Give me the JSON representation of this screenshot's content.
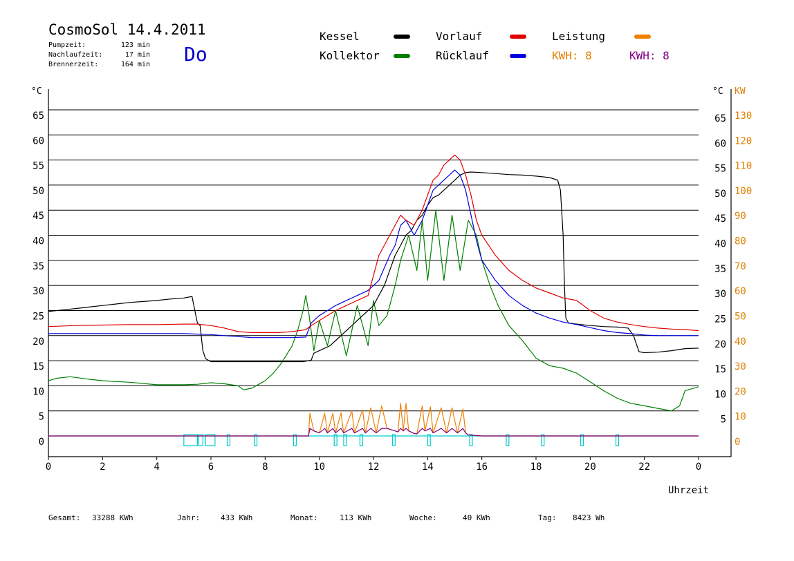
{
  "header": {
    "title": "CosmoSol 14.4.2011",
    "day": "Do",
    "stats": [
      {
        "label": "Pumpzeit:",
        "value": "123 min"
      },
      {
        "label": "Nachlaufzeit:",
        "value": "17 min"
      },
      {
        "label": "Brennerzeit:",
        "value": "164 min"
      }
    ]
  },
  "legend": {
    "items": [
      {
        "label": "Kessel",
        "color": "#000000"
      },
      {
        "label": "Vorlauf",
        "color": "#e00000"
      },
      {
        "label": "Leistung",
        "color": "#f08000"
      },
      {
        "label": "Kollektor",
        "color": "#008000"
      },
      {
        "label": "Rücklauf",
        "color": "#0000e0"
      }
    ],
    "kwh": [
      {
        "text": "KWH: 8",
        "color": "#e08000"
      },
      {
        "text": "KWH: 8",
        "color": "#800080"
      }
    ]
  },
  "footer": [
    {
      "label": "Gesamt:",
      "value": "33288 KWh"
    },
    {
      "label": "Jahr:",
      "value": "433 KWh"
    },
    {
      "label": "Monat:",
      "value": "113 KWh"
    },
    {
      "label": "Woche:",
      "value": "40 KWh"
    },
    {
      "label": "Tag:",
      "value": "8423 Wh"
    }
  ],
  "chart_data": {
    "type": "line",
    "xlabel": "Uhrzeit",
    "ylabel_left": "°C",
    "ylabel_right": "°C",
    "ylabel_right2": "KW",
    "xlim": [
      0,
      24
    ],
    "ylim": [
      0,
      65
    ],
    "x_ticks": [
      "0",
      "2",
      "4",
      "6",
      "8",
      "10",
      "12",
      "14",
      "16",
      "18",
      "20",
      "22",
      "0"
    ],
    "y_ticks": [
      0,
      5,
      10,
      15,
      20,
      25,
      30,
      35,
      40,
      45,
      50,
      55,
      60,
      65
    ],
    "y2_ticks": [
      0,
      10,
      20,
      30,
      40,
      50,
      60,
      70,
      80,
      90,
      100,
      110,
      120,
      130
    ],
    "grid": true,
    "series": [
      {
        "name": "Kessel",
        "color": "#000000",
        "x": [
          0,
          0.5,
          1,
          1.5,
          2,
          2.5,
          3,
          3.5,
          4,
          4.5,
          5,
          5.2,
          5.3,
          5.5,
          5.6,
          5.7,
          5.8,
          6,
          7,
          8,
          9,
          9.4,
          9.7,
          9.8,
          10,
          10.2,
          10.4,
          10.6,
          10.8,
          11,
          11.2,
          11.4,
          11.6,
          11.8,
          12,
          12.2,
          12.4,
          12.6,
          12.8,
          13,
          13.2,
          13.4,
          13.6,
          13.8,
          14,
          14.2,
          14.4,
          14.6,
          14.8,
          15,
          15.2,
          15.4,
          15.6,
          16,
          16.5,
          17,
          17.5,
          18,
          18.5,
          18.8,
          18.9,
          19,
          19.05,
          19.1,
          19.2,
          19.5,
          20,
          20.5,
          21,
          21.2,
          21.4,
          21.6,
          21.8,
          22,
          22.5,
          23,
          23.5,
          24
        ],
        "y": [
          24.8,
          25.1,
          25.4,
          25.7,
          26.0,
          26.3,
          26.6,
          26.8,
          27.0,
          27.3,
          27.5,
          27.7,
          27.8,
          22.5,
          22.0,
          17.0,
          15.4,
          14.8,
          14.8,
          14.8,
          14.8,
          14.8,
          15.1,
          16.5,
          17.0,
          17.5,
          18.0,
          19.0,
          20.0,
          21.0,
          22.0,
          23.0,
          24.0,
          25.0,
          26.0,
          28.0,
          30.0,
          33.0,
          36.0,
          38.0,
          40.0,
          41.0,
          43.0,
          44.0,
          46.0,
          47.5,
          48.0,
          49.0,
          50.0,
          51.0,
          52.0,
          52.5,
          52.6,
          52.5,
          52.3,
          52.1,
          52.0,
          51.8,
          51.5,
          51.0,
          49.0,
          40.0,
          30.0,
          23.5,
          22.5,
          22.3,
          22.0,
          21.8,
          21.7,
          21.6,
          21.5,
          20.0,
          16.8,
          16.6,
          16.7,
          17.0,
          17.4,
          17.5
        ]
      },
      {
        "name": "Vorlauf",
        "color": "#e00000",
        "x": [
          0,
          1,
          2,
          3,
          4,
          5,
          5.5,
          6,
          6.5,
          7,
          7.5,
          8,
          8.5,
          9,
          9.5,
          9.7,
          10,
          10.3,
          10.6,
          11,
          11.4,
          11.8,
          12.2,
          12.6,
          12.8,
          13,
          13.2,
          13.5,
          13.8,
          14,
          14.2,
          14.4,
          14.6,
          14.8,
          15,
          15.2,
          15.4,
          15.6,
          15.8,
          16,
          16.5,
          17,
          17.5,
          18,
          18.5,
          19,
          19.5,
          20,
          20.5,
          21,
          21.5,
          22,
          22.5,
          23,
          23.5,
          24
        ],
        "y": [
          21.8,
          22.0,
          22.1,
          22.2,
          22.2,
          22.3,
          22.3,
          22.0,
          21.5,
          20.8,
          20.6,
          20.6,
          20.6,
          20.8,
          21.2,
          22.0,
          23.0,
          24.0,
          25.0,
          26.0,
          27.0,
          28.0,
          36.0,
          40.0,
          42.0,
          44.0,
          43.0,
          42.0,
          45.0,
          48.0,
          51.0,
          52.0,
          54.0,
          55.0,
          56.0,
          55.0,
          52.0,
          48.0,
          43.0,
          40.0,
          36.0,
          33.0,
          31.0,
          29.5,
          28.5,
          27.5,
          27.0,
          25.0,
          23.5,
          22.7,
          22.2,
          21.8,
          21.5,
          21.3,
          21.2,
          21.0
        ]
      },
      {
        "name": "Rücklauf",
        "color": "#0000e0",
        "x": [
          0,
          1,
          2,
          3,
          4,
          5,
          5.5,
          6,
          6.5,
          7,
          7.5,
          8,
          8.5,
          9,
          9.5,
          9.7,
          10,
          10.3,
          10.6,
          11,
          11.4,
          11.8,
          12.2,
          12.6,
          12.8,
          13,
          13.2,
          13.5,
          13.8,
          14,
          14.2,
          14.4,
          14.6,
          14.8,
          15,
          15.2,
          15.4,
          15.6,
          15.8,
          16,
          16.5,
          17,
          17.5,
          18,
          18.5,
          19,
          19.5,
          20,
          20.5,
          21,
          21.5,
          22,
          22.5,
          23,
          23.5,
          24
        ],
        "y": [
          20.4,
          20.4,
          20.4,
          20.4,
          20.4,
          20.4,
          20.3,
          20.2,
          20.0,
          19.8,
          19.6,
          19.6,
          19.6,
          19.6,
          19.7,
          22.5,
          24.0,
          25.0,
          26.0,
          27.0,
          28.0,
          29.0,
          31.0,
          36.0,
          38.0,
          42.0,
          43.0,
          40.0,
          43.0,
          46.0,
          49.0,
          50.0,
          51.0,
          52.0,
          53.0,
          52.0,
          49.0,
          44.0,
          39.0,
          35.0,
          31.0,
          28.0,
          26.0,
          24.5,
          23.5,
          22.7,
          22.2,
          21.6,
          21.0,
          20.6,
          20.4,
          20.1,
          20.0,
          20.0,
          20.0,
          20.0
        ]
      },
      {
        "name": "Kollektor",
        "color": "#008000",
        "x": [
          0,
          0.3,
          0.8,
          1.5,
          2,
          3,
          4,
          5,
          5.5,
          6,
          6.5,
          7,
          7.2,
          7.5,
          8,
          8.3,
          8.6,
          9,
          9.2,
          9.4,
          9.5,
          9.6,
          9.8,
          10,
          10.3,
          10.6,
          11,
          11.4,
          11.8,
          12,
          12.2,
          12.5,
          12.8,
          13,
          13.3,
          13.6,
          13.8,
          14,
          14.3,
          14.6,
          14.9,
          15.2,
          15.5,
          15.8,
          16,
          16.3,
          16.6,
          17,
          17.5,
          18,
          18.5,
          19,
          19.5,
          20,
          20.5,
          21,
          21.5,
          22,
          22.5,
          23,
          23.3,
          23.5,
          24
        ],
        "y": [
          11.0,
          11.5,
          11.8,
          11.3,
          11.0,
          10.7,
          10.2,
          10.2,
          10.3,
          10.6,
          10.4,
          10.0,
          9.2,
          9.5,
          11.0,
          12.5,
          14.5,
          18.0,
          21.0,
          25.0,
          28.0,
          25.0,
          17.0,
          23.0,
          18.0,
          25.0,
          16.0,
          26.0,
          18.0,
          27.0,
          22.0,
          24.0,
          30.0,
          35.0,
          40.0,
          33.0,
          43.0,
          31.0,
          45.0,
          31.0,
          44.0,
          33.0,
          43.0,
          40.0,
          35.0,
          30.0,
          26.0,
          22.0,
          19.0,
          15.5,
          14.0,
          13.5,
          12.5,
          10.8,
          9.0,
          7.5,
          6.5,
          6.0,
          5.5,
          5.0,
          6.0,
          9.0,
          9.8
        ]
      },
      {
        "name": "Leistung",
        "color": "#f08000",
        "x": [
          0,
          9.6,
          9.65,
          9.8,
          10,
          10.2,
          10.3,
          10.5,
          10.6,
          10.8,
          10.9,
          11.2,
          11.3,
          11.6,
          11.7,
          11.9,
          12.1,
          12.3,
          12.5,
          12.8,
          12.9,
          13.0,
          13.1,
          13.2,
          13.3,
          13.5,
          13.6,
          13.8,
          13.9,
          14.1,
          14.2,
          14.5,
          14.7,
          14.9,
          15.1,
          15.3,
          15.4,
          15.5,
          16,
          24
        ],
        "y": [
          0,
          0,
          4.5,
          1.0,
          0.6,
          4.5,
          0.6,
          4.5,
          0.6,
          4.6,
          0.6,
          5.0,
          0.6,
          5.2,
          0.6,
          5.6,
          0.6,
          6.0,
          1.5,
          1.0,
          0.8,
          6.5,
          1.0,
          6.5,
          1.0,
          0.5,
          0.4,
          6.0,
          1.0,
          5.8,
          0.6,
          5.6,
          0.6,
          5.6,
          0.6,
          5.4,
          0.6,
          0.2,
          0,
          0
        ]
      }
    ]
  }
}
